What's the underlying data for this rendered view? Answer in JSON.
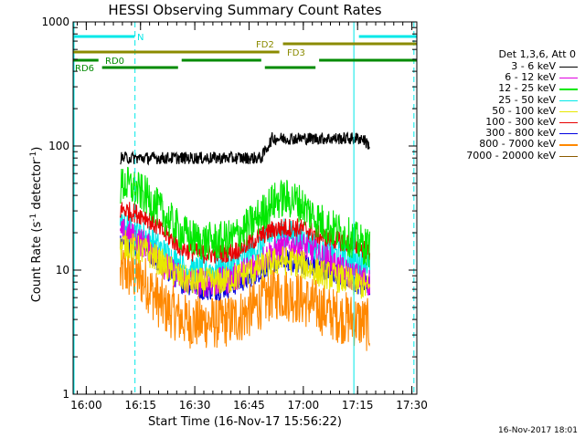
{
  "title": "HESSI Observing Summary Count Rates",
  "xlabel": "Start Time (16-Nov-17 15:56:22)",
  "ylabel_main": "Count Rate (s",
  "ylabel_sup1": "-1",
  "ylabel_mid": " detector",
  "ylabel_sup2": "-1",
  "ylabel_end": ")",
  "timestamp": "16-Nov-2017 18:01",
  "legend": {
    "header": "Det 1,3,6, Att 0",
    "entries": [
      {
        "label": "3 - 6 keV",
        "color": "#000000"
      },
      {
        "label": "6 - 12 keV",
        "color": "#e000e0"
      },
      {
        "label": "12 - 25 keV",
        "color": "#00e800"
      },
      {
        "label": "25 - 50 keV",
        "color": "#00e8e8"
      },
      {
        "label": "50 - 100 keV",
        "color": "#e8e800"
      },
      {
        "label": "100 - 300 keV",
        "color": "#e80000"
      },
      {
        "label": "300 - 800 keV",
        "color": "#0000e0"
      },
      {
        "label": "800 - 7000 keV",
        "color": "#ff8800"
      },
      {
        "label": "7000 - 20000 keV",
        "color": "#8b5a00"
      }
    ]
  },
  "flags": {
    "N": {
      "label": "N",
      "color": "#00e8e8"
    },
    "FD2": {
      "label": "FD2",
      "color": "#8b8b00"
    },
    "FD3": {
      "label": "FD3",
      "color": "#8b8b00"
    },
    "RD0": {
      "label": "RD0",
      "color": "#008b00"
    },
    "RD6": {
      "label": "RD6",
      "color": "#008b00"
    }
  },
  "chart_data": {
    "type": "line",
    "title": "HESSI Observing Summary Count Rates",
    "xlabel": "Start Time (16-Nov-17 15:56:22)",
    "ylabel": "Count Rate (s^-1 detector^-1)",
    "xscale": "time (minutes after 15:56:22)",
    "yscale": "log",
    "xlim": [
      0,
      95
    ],
    "ylim": [
      1,
      1000
    ],
    "xticks": [
      {
        "t": 3.63,
        "label": "16:00"
      },
      {
        "t": 18.63,
        "label": "16:15"
      },
      {
        "t": 33.63,
        "label": "16:30"
      },
      {
        "t": 48.63,
        "label": "16:45"
      },
      {
        "t": 63.63,
        "label": "17:00"
      },
      {
        "t": 78.63,
        "label": "17:15"
      },
      {
        "t": 93.63,
        "label": "17:30"
      }
    ],
    "yticks": [
      {
        "v": 1,
        "label": "1"
      },
      {
        "v": 10,
        "label": "10"
      },
      {
        "v": 100,
        "label": "100"
      },
      {
        "v": 1000,
        "label": "1000"
      }
    ],
    "x": [
      13,
      14,
      15,
      17,
      20,
      22,
      25,
      28,
      30,
      33,
      36,
      40,
      44,
      48,
      52,
      55,
      58,
      62,
      65,
      68,
      71,
      74,
      77,
      80,
      82
    ],
    "series": [
      {
        "name": "3 - 6 keV",
        "color": "#000000",
        "noise": 0.05,
        "values": [
          80,
          80,
          80,
          80,
          80,
          80,
          80,
          80,
          80,
          80,
          80,
          80,
          80,
          80,
          80,
          115,
          115,
          115,
          115,
          115,
          115,
          115,
          115,
          115,
          100
        ]
      },
      {
        "name": "6 - 12 keV",
        "color": "#e000e0",
        "noise": 0.12,
        "values": [
          19,
          20,
          20,
          18,
          16,
          14,
          11,
          9.5,
          8.5,
          8,
          8,
          8,
          8.5,
          10,
          12,
          14,
          15,
          16,
          15,
          13,
          12,
          10,
          9,
          8.5,
          8
        ]
      },
      {
        "name": "12 - 25 keV",
        "color": "#00e800",
        "noise": 0.16,
        "values": [
          45,
          50,
          48,
          45,
          40,
          35,
          28,
          23,
          20,
          18,
          17,
          17,
          18,
          22,
          28,
          35,
          38,
          36,
          30,
          25,
          22,
          20,
          18,
          16,
          15
        ]
      },
      {
        "name": "25 - 50 keV",
        "color": "#00e8e8",
        "noise": 0.12,
        "values": [
          22,
          23,
          22,
          21,
          19,
          17,
          14,
          12,
          11,
          10,
          10,
          10,
          11,
          13,
          16,
          19,
          20,
          19,
          17,
          15,
          14,
          13,
          12,
          12,
          11
        ]
      },
      {
        "name": "50 - 100 keV",
        "color": "#e8e800",
        "noise": 0.12,
        "values": [
          15,
          16,
          16,
          15,
          14,
          13,
          11,
          9.5,
          8.5,
          8,
          8,
          8,
          8.5,
          9.5,
          10.5,
          11.5,
          12,
          11.5,
          10.5,
          9.5,
          9,
          8.5,
          8,
          7.5,
          7
        ]
      },
      {
        "name": "100 - 300 keV",
        "color": "#e80000",
        "noise": 0.08,
        "values": [
          30,
          31,
          30,
          29,
          27,
          24,
          20,
          17,
          15,
          14,
          13.5,
          13.5,
          14,
          16,
          19,
          21,
          22,
          22,
          21,
          19,
          18,
          17,
          16,
          15,
          14
        ]
      },
      {
        "name": "300 - 800 keV",
        "color": "#0000e0",
        "noise": 0.09,
        "values": [
          16,
          17,
          17,
          16,
          15,
          13,
          10.5,
          9,
          8,
          7.5,
          7,
          7,
          7.5,
          8.5,
          10,
          11.5,
          12,
          11.5,
          11,
          10.5,
          10,
          9,
          8,
          7.5,
          7.5
        ]
      },
      {
        "name": "800 - 7000 keV",
        "color": "#ff8800",
        "noise": 0.22,
        "values": [
          9,
          10,
          9.5,
          9,
          8,
          6.5,
          5,
          4.5,
          4,
          3.8,
          3.8,
          3.8,
          4,
          4.5,
          5.5,
          6.5,
          6.5,
          6,
          5.5,
          5,
          4.5,
          4.2,
          4,
          3.8,
          3.5
        ]
      }
    ],
    "markers": [
      {
        "t": 17.1,
        "label": "",
        "color": "#00e8e8",
        "style": "dashed"
      },
      {
        "t": 77.6,
        "label": "",
        "color": "#00e8e8",
        "style": "solid"
      },
      {
        "t": 94.2,
        "label": "",
        "color": "#00e8e8",
        "style": "dashed"
      }
    ],
    "bars": [
      {
        "row": 0,
        "label": "N",
        "color": "#00e8e8",
        "segments": [
          [
            0,
            17
          ],
          [
            79,
            95
          ]
        ]
      },
      {
        "row": 1,
        "label": "FD2",
        "color": "#8b8b00",
        "segments": [
          [
            58,
            95
          ]
        ]
      },
      {
        "row": 2,
        "label": "FD3",
        "color": "#8b8b00",
        "segments": [
          [
            0,
            57
          ]
        ]
      },
      {
        "row": 3,
        "label": "RD0",
        "color": "#008b00",
        "segments": [
          [
            0,
            7
          ],
          [
            30,
            52
          ],
          [
            68,
            95
          ]
        ]
      },
      {
        "row": 4,
        "label": "RD6",
        "color": "#008b00",
        "segments": [
          [
            8,
            29
          ],
          [
            53,
            67
          ]
        ]
      }
    ]
  }
}
